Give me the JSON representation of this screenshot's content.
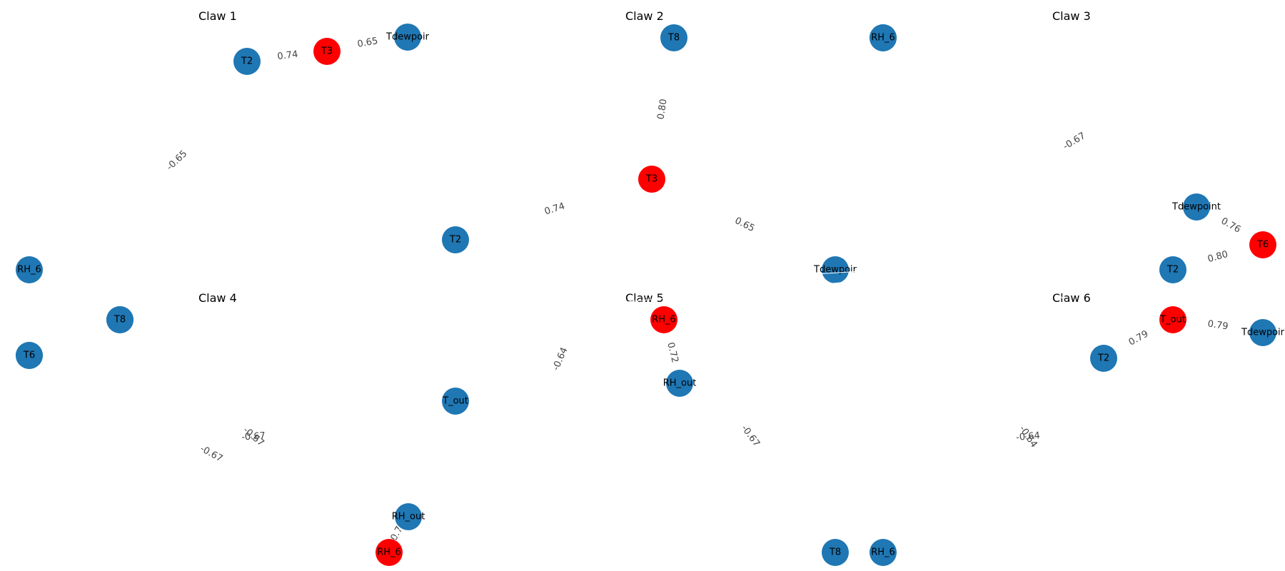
{
  "colors": {
    "hub": "#ff0000",
    "leaf": "#1f77b4"
  },
  "panels": [
    {
      "title": "Claw 1",
      "nodes": [
        {
          "id": "hub",
          "label": "T3",
          "role": "hub"
        },
        {
          "id": "a",
          "label": "T2",
          "role": "leaf"
        },
        {
          "id": "b",
          "label": "Tdewpoir",
          "role": "leaf"
        },
        {
          "id": "c",
          "label": "RH_6",
          "role": "leaf"
        }
      ],
      "edges": [
        {
          "from": "a",
          "to": "hub",
          "label": "0.74"
        },
        {
          "from": "hub",
          "to": "b",
          "label": "0.65"
        },
        {
          "from": "a",
          "to": "c",
          "label": "-0.65"
        }
      ]
    },
    {
      "title": "Claw 2",
      "nodes": [
        {
          "id": "hub",
          "label": "T3",
          "role": "hub"
        },
        {
          "id": "a",
          "label": "T8",
          "role": "leaf"
        },
        {
          "id": "b",
          "label": "RH_6",
          "role": "leaf"
        },
        {
          "id": "c",
          "label": "T2",
          "role": "leaf"
        },
        {
          "id": "d",
          "label": "Tdewpoir",
          "role": "leaf"
        }
      ],
      "edges": [
        {
          "from": "a",
          "to": "hub",
          "label": "0.80"
        },
        {
          "from": "c",
          "to": "hub",
          "label": "0.74"
        },
        {
          "from": "hub",
          "to": "d",
          "label": "0.65"
        },
        {
          "from": "b",
          "to": "hub",
          "label": "-0.67"
        }
      ]
    },
    {
      "title": "Claw 3",
      "nodes": [
        {
          "id": "hub",
          "label": "T6",
          "role": "hub"
        },
        {
          "id": "a",
          "label": "Tdewpoint",
          "role": "leaf"
        },
        {
          "id": "b",
          "label": "T2",
          "role": "leaf"
        },
        {
          "id": "c",
          "label": "RH_6",
          "role": "leaf"
        },
        {
          "id": "d",
          "label": "T8",
          "role": "leaf"
        }
      ],
      "edges": [
        {
          "from": "a",
          "to": "hub",
          "label": "0.76"
        },
        {
          "from": "b",
          "to": "hub",
          "label": "0.80"
        },
        {
          "from": "c",
          "to": "hub",
          "label": "-0.64"
        },
        {
          "from": "d",
          "to": "hub",
          "label": "-0.67"
        }
      ]
    },
    {
      "title": "Claw 4",
      "nodes": [
        {
          "id": "hub",
          "label": "RH_6",
          "role": "hub"
        },
        {
          "id": "a",
          "label": "RH_out",
          "role": "leaf"
        },
        {
          "id": "b",
          "label": "T_out",
          "role": "leaf"
        },
        {
          "id": "c",
          "label": "T6",
          "role": "leaf"
        },
        {
          "id": "d",
          "label": "T8",
          "role": "leaf"
        }
      ],
      "edges": [
        {
          "from": "a",
          "to": "hub",
          "label": "0.72"
        },
        {
          "from": "c",
          "to": "hub",
          "label": "-0.67"
        },
        {
          "from": "d",
          "to": "hub",
          "label": "-0.67"
        },
        {
          "from": "b",
          "to": "hub",
          "label": "-0.64"
        }
      ]
    },
    {
      "title": "Claw 5",
      "nodes": [
        {
          "id": "hub",
          "label": "RH_6",
          "role": "hub"
        },
        {
          "id": "a",
          "label": "RH_out",
          "role": "leaf"
        },
        {
          "id": "b",
          "label": "T8",
          "role": "leaf"
        },
        {
          "id": "c",
          "label": "RH_6",
          "role": "leaf"
        }
      ],
      "edges": [
        {
          "from": "hub",
          "to": "a",
          "label": "0.72"
        },
        {
          "from": "hub",
          "to": "b",
          "label": "-0.67"
        },
        {
          "from": "a",
          "to": "c",
          "label": ""
        }
      ]
    },
    {
      "title": "Claw 6",
      "nodes": [
        {
          "id": "hub",
          "label": "T_out",
          "role": "hub"
        },
        {
          "id": "a",
          "label": "T2",
          "role": "leaf"
        },
        {
          "id": "b",
          "label": "Tdewpoir",
          "role": "leaf"
        },
        {
          "id": "c",
          "label": "RH_6",
          "role": "leaf"
        }
      ],
      "edges": [
        {
          "from": "a",
          "to": "hub",
          "label": "0.79"
        },
        {
          "from": "hub",
          "to": "b",
          "label": "0.79"
        },
        {
          "from": "a",
          "to": "c",
          "label": "-0.64"
        }
      ]
    }
  ]
}
